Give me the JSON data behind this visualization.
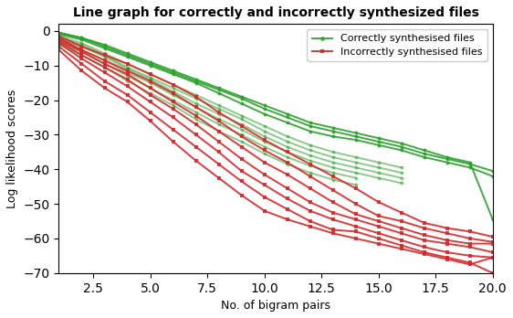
{
  "title": "Line graph for correctly and incorrectly synthesized files",
  "xlabel": "No. of bigram pairs",
  "ylabel": "Log likelihood scores",
  "xlim": [
    1,
    20
  ],
  "ylim": [
    -70,
    2
  ],
  "green_lines_x": [
    [
      1,
      2,
      3,
      4,
      5,
      6,
      7,
      8,
      9,
      10,
      11,
      12,
      13,
      14,
      15,
      16,
      17,
      18,
      19,
      20
    ],
    [
      1,
      2,
      3,
      4,
      5,
      6,
      7,
      8,
      9,
      10,
      11,
      12,
      13,
      14,
      15,
      16,
      17,
      18,
      19,
      20
    ],
    [
      1,
      2,
      3,
      4,
      5,
      6,
      7,
      8,
      9,
      10,
      11,
      12,
      13,
      14,
      15,
      16,
      17,
      18,
      19,
      20
    ],
    [
      1,
      2,
      3,
      4,
      5,
      6,
      7,
      8,
      9,
      10,
      11,
      12,
      13,
      14,
      15,
      16
    ],
    [
      1,
      2,
      3,
      4,
      5,
      6,
      7,
      8,
      9,
      10,
      11,
      12,
      13,
      14,
      15,
      16
    ],
    [
      1,
      2,
      3,
      4,
      5,
      6,
      7,
      8,
      9,
      10,
      11,
      12,
      13,
      14,
      15,
      16
    ],
    [
      1,
      2,
      3,
      4,
      5,
      6,
      7,
      8,
      9,
      10,
      11,
      12,
      13,
      14,
      15,
      16
    ],
    [
      1,
      2,
      3,
      4,
      5,
      6,
      7,
      8,
      9,
      10,
      11,
      12,
      13,
      14
    ],
    [
      1,
      2,
      3,
      4,
      5,
      6,
      7,
      8,
      9,
      10,
      11,
      12,
      13,
      14
    ]
  ],
  "green_lines_y": [
    [
      -1.0,
      -2.5,
      -5.0,
      -7.5,
      -10.0,
      -12.5,
      -15.0,
      -18.0,
      -21.0,
      -24.0,
      -26.5,
      -29.0,
      -30.5,
      -31.5,
      -33.0,
      -34.5,
      -36.5,
      -38.0,
      -39.5,
      -42.0
    ],
    [
      -0.5,
      -2.0,
      -4.5,
      -7.0,
      -9.5,
      -12.0,
      -14.5,
      -17.0,
      -19.5,
      -22.5,
      -25.0,
      -27.5,
      -29.0,
      -30.5,
      -32.0,
      -33.5,
      -35.5,
      -37.0,
      -38.5,
      -40.5
    ],
    [
      -0.5,
      -2.0,
      -4.0,
      -6.5,
      -9.0,
      -11.5,
      -14.0,
      -16.5,
      -19.0,
      -21.5,
      -24.0,
      -26.5,
      -28.0,
      -29.5,
      -31.0,
      -32.5,
      -34.5,
      -36.5,
      -38.0,
      -54.5
    ],
    [
      -1.5,
      -3.5,
      -6.5,
      -9.5,
      -12.5,
      -15.5,
      -18.5,
      -21.5,
      -24.5,
      -27.5,
      -30.5,
      -33.0,
      -35.0,
      -36.5,
      -38.0,
      -39.5
    ],
    [
      -2.0,
      -4.0,
      -7.0,
      -10.5,
      -13.5,
      -16.5,
      -19.5,
      -22.5,
      -25.5,
      -29.0,
      -32.0,
      -34.5,
      -36.5,
      -38.0,
      -39.5,
      -41.0
    ],
    [
      -2.5,
      -4.5,
      -7.5,
      -11.0,
      -14.0,
      -17.5,
      -21.0,
      -24.0,
      -27.0,
      -30.5,
      -33.5,
      -36.0,
      -38.0,
      -39.5,
      -41.0,
      -42.5
    ],
    [
      -3.0,
      -5.5,
      -8.5,
      -12.0,
      -15.0,
      -18.5,
      -22.0,
      -25.5,
      -28.5,
      -32.0,
      -35.0,
      -37.5,
      -39.5,
      -41.0,
      -42.5,
      -44.0
    ],
    [
      -3.5,
      -6.0,
      -9.5,
      -13.0,
      -16.5,
      -20.0,
      -23.5,
      -27.0,
      -30.0,
      -33.5,
      -36.5,
      -39.0,
      -41.0,
      -42.5
    ],
    [
      -4.0,
      -7.0,
      -10.5,
      -14.5,
      -18.0,
      -21.5,
      -25.5,
      -29.0,
      -32.0,
      -35.5,
      -38.5,
      -41.0,
      -43.0,
      -44.5
    ]
  ],
  "red_lines_x": [
    [
      1,
      2,
      3,
      4,
      5,
      6,
      7,
      8,
      9,
      10,
      11,
      12,
      13,
      14,
      15,
      16,
      17,
      18,
      19,
      20
    ],
    [
      1,
      2,
      3,
      4,
      5,
      6,
      7,
      8,
      9,
      10,
      11,
      12,
      13,
      14,
      15,
      16,
      17,
      18,
      19,
      20
    ],
    [
      1,
      2,
      3,
      4,
      5,
      6,
      7,
      8,
      9,
      10,
      11,
      12,
      13,
      14,
      15,
      16,
      17,
      18,
      19,
      20
    ],
    [
      1,
      2,
      3,
      4,
      5,
      6,
      7,
      8,
      9,
      10,
      11,
      12,
      13,
      14,
      15,
      16,
      17,
      18,
      19,
      20
    ],
    [
      1,
      2,
      3,
      4,
      5,
      6,
      7,
      8,
      9,
      10,
      11,
      12,
      13,
      14,
      15,
      16,
      17,
      18,
      19,
      20
    ],
    [
      1,
      2,
      3,
      4,
      5,
      6,
      7,
      8,
      9,
      10,
      11,
      12,
      13,
      14,
      15,
      16,
      17,
      18,
      19,
      20
    ],
    [
      1,
      2,
      3,
      4,
      5,
      6,
      7,
      8,
      9,
      10,
      11,
      12,
      13,
      14,
      15,
      16,
      17,
      18,
      19,
      20
    ]
  ],
  "red_lines_y": [
    [
      -1.5,
      -4.5,
      -7.0,
      -9.5,
      -12.5,
      -15.5,
      -19.0,
      -23.5,
      -27.5,
      -31.5,
      -35.0,
      -38.5,
      -42.0,
      -45.5,
      -49.5,
      -52.5,
      -55.5,
      -57.0,
      -58.0,
      -59.5
    ],
    [
      -2.0,
      -5.5,
      -8.5,
      -11.5,
      -14.5,
      -18.0,
      -22.0,
      -26.0,
      -30.5,
      -34.5,
      -38.0,
      -42.0,
      -46.0,
      -50.0,
      -53.5,
      -55.0,
      -57.0,
      -58.5,
      -60.0,
      -61.0
    ],
    [
      -2.5,
      -6.0,
      -9.5,
      -12.5,
      -16.5,
      -20.5,
      -24.5,
      -29.0,
      -33.5,
      -38.0,
      -41.5,
      -45.5,
      -49.5,
      -53.0,
      -55.0,
      -57.0,
      -59.0,
      -60.5,
      -61.5,
      -61.5
    ],
    [
      -3.0,
      -7.0,
      -10.5,
      -14.0,
      -18.5,
      -22.5,
      -27.0,
      -32.0,
      -37.0,
      -41.5,
      -45.5,
      -49.5,
      -52.5,
      -54.5,
      -56.5,
      -58.5,
      -60.5,
      -61.5,
      -62.5,
      -64.0
    ],
    [
      -3.5,
      -8.0,
      -12.0,
      -16.0,
      -20.5,
      -25.0,
      -30.0,
      -35.0,
      -40.5,
      -44.5,
      -48.5,
      -52.0,
      -54.5,
      -56.5,
      -58.5,
      -60.5,
      -62.5,
      -64.0,
      -65.0,
      -65.5
    ],
    [
      -4.5,
      -9.5,
      -14.5,
      -18.5,
      -23.5,
      -28.5,
      -33.5,
      -38.5,
      -43.5,
      -48.0,
      -51.5,
      -55.0,
      -57.5,
      -58.0,
      -60.0,
      -62.0,
      -64.0,
      -65.5,
      -67.0,
      -70.0
    ],
    [
      -5.5,
      -11.5,
      -16.5,
      -20.5,
      -26.0,
      -32.0,
      -37.5,
      -42.5,
      -47.5,
      -52.0,
      -54.5,
      -56.5,
      -58.5,
      -60.0,
      -61.5,
      -63.0,
      -64.5,
      -66.0,
      -67.5,
      -65.5
    ]
  ],
  "green_color": "#2ca02c",
  "red_color": "#d62728",
  "legend_green": "Correctly synthesised files",
  "legend_red": "Incorrectly synthesised files",
  "xticks": [
    2.5,
    5.0,
    7.5,
    10.0,
    12.5,
    15.0,
    17.5,
    20.0
  ],
  "yticks": [
    0,
    -10,
    -20,
    -30,
    -40,
    -50,
    -60,
    -70
  ],
  "title_fontsize": 10,
  "label_fontsize": 9,
  "legend_fontsize": 8
}
